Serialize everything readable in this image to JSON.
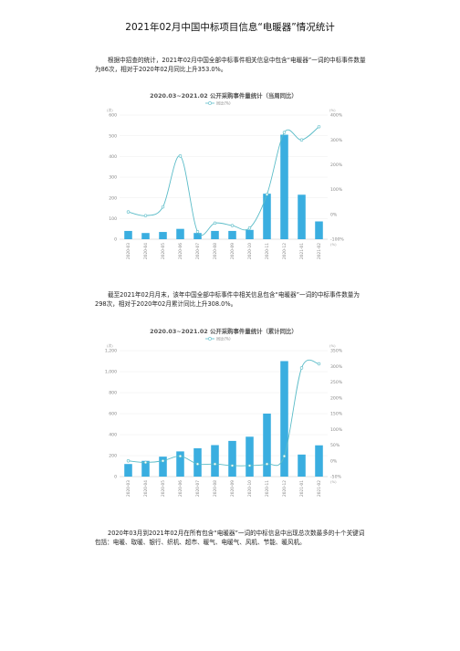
{
  "title": "2021年02月中国中标项目信息“电暖器”情况统计",
  "paragraphs": [
    "根据中招查的统计，2021年02月中国全部中标事件相关信息中包含“电暖器”一词的中标事件数量为86次，相对于2020年02月同比上升353.0%。",
    "截至2021年02月月末，该年中国全部中标事件中相关信息包含“电暖器”一词的中标事件数量为298次，相对于2020年02月累计同比上升308.0%。",
    "2020年03月到2021年02月在所有包含“电暖器”一词的中标信息中出现总次数最多的十个关键词包括：电暖、取暖、银行、织机、超市、暖气、电暖气、风机、节能、暖风机。"
  ],
  "chart_data": [
    {
      "type": "bar",
      "title": "2020.03~2021.02 公开采购事件量统计（当周同比）",
      "legend": "同比(%)",
      "legend_position": "top-center",
      "left_unit": "(次)",
      "right_unit": "(%)",
      "right_axis_end_label": "(%)",
      "categories": [
        "2020-03",
        "2020-04",
        "2020-05",
        "2020-06",
        "2020-07",
        "2020-08",
        "2020-09",
        "2020-10",
        "2020-11",
        "2020-12",
        "2021-01",
        "2021-02"
      ],
      "left_ticks": [
        "0",
        "100",
        "200",
        "300",
        "400",
        "500",
        "600"
      ],
      "right_ticks": [
        "-100%",
        "0%",
        "100%",
        "200%",
        "300%",
        "400%"
      ],
      "ylim": [
        0,
        600
      ],
      "y2lim": [
        -100,
        400
      ],
      "bars": [
        40,
        30,
        35,
        50,
        30,
        40,
        40,
        45,
        220,
        505,
        215,
        86
      ],
      "line_pct": [
        10,
        -5,
        30,
        235,
        -70,
        -35,
        -45,
        -55,
        80,
        330,
        300,
        353
      ],
      "bar_color": "#3aaee0",
      "line_color": "#5bbcc8",
      "grid": true
    },
    {
      "type": "bar",
      "title": "2020.03~2021.02 公开采购事件量统计（累计同比）",
      "legend": "同比(%)",
      "legend_position": "top-center",
      "left_unit": "(次)",
      "right_unit": "(%)",
      "right_axis_end_label": "(%)",
      "categories": [
        "2020-03",
        "2020-04",
        "2020-05",
        "2020-06",
        "2020-07",
        "2020-08",
        "2020-09",
        "2020-10",
        "2020-11",
        "2020-12",
        "2021-01",
        "2021-02"
      ],
      "left_ticks": [
        "0",
        "200",
        "400",
        "600",
        "800",
        "1,000",
        "1,200"
      ],
      "right_ticks": [
        "-50%",
        "0%",
        "50%",
        "100%",
        "150%",
        "200%",
        "250%",
        "300%",
        "350%"
      ],
      "ylim": [
        0,
        1200
      ],
      "y2lim": [
        -50,
        350
      ],
      "bars": [
        120,
        150,
        190,
        240,
        270,
        300,
        340,
        380,
        600,
        1100,
        210,
        298
      ],
      "line_pct": [
        0,
        -5,
        0,
        15,
        -10,
        -10,
        -15,
        -15,
        -10,
        15,
        295,
        308
      ],
      "bar_color": "#3aaee0",
      "line_color": "#5bbcc8",
      "grid": true
    }
  ]
}
